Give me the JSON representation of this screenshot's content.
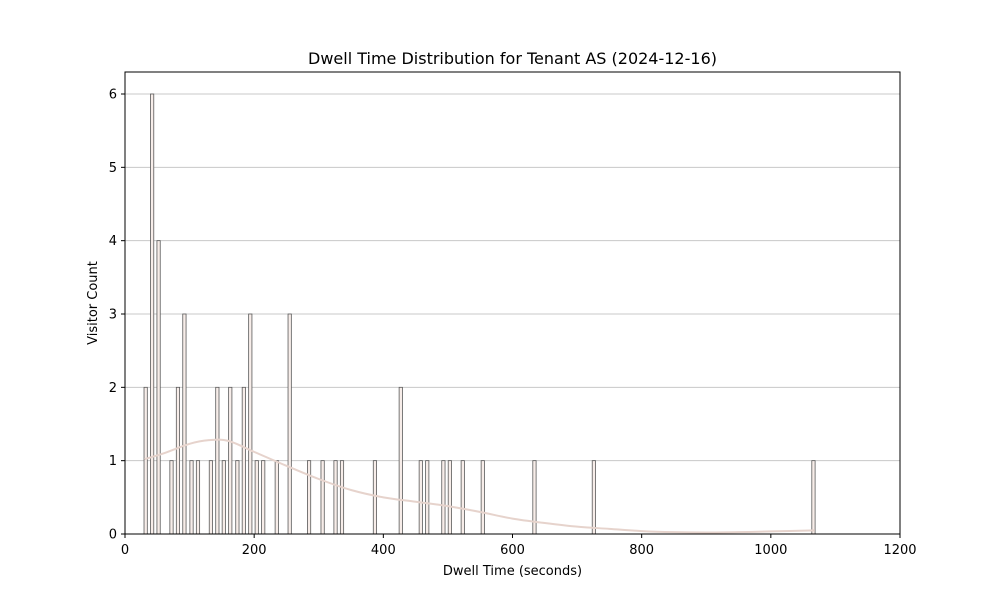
{
  "chart_data": {
    "type": "bar",
    "title": "Dwell Time Distribution for Tenant AS (2024-12-16)",
    "xlabel": "Dwell Time (seconds)",
    "ylabel": "Visitor Count",
    "xlim": [
      0,
      1200
    ],
    "ylim": [
      0,
      6.3
    ],
    "xticks": [
      0,
      200,
      400,
      600,
      800,
      1000,
      1200
    ],
    "yticks": [
      0,
      1,
      2,
      3,
      4,
      5,
      6
    ],
    "grid": {
      "axis": "y",
      "color": "#c8c8c8"
    },
    "bar_color": "#f7ede9",
    "bar_edge_color": "#5a5a5a",
    "kde_color": "#e6d3cc",
    "bin_width": 5.1,
    "bins": [
      {
        "x": 32,
        "count": 2
      },
      {
        "x": 42,
        "count": 6
      },
      {
        "x": 52,
        "count": 4
      },
      {
        "x": 72,
        "count": 1
      },
      {
        "x": 82,
        "count": 2
      },
      {
        "x": 92,
        "count": 3
      },
      {
        "x": 103,
        "count": 1
      },
      {
        "x": 113,
        "count": 1
      },
      {
        "x": 133,
        "count": 1
      },
      {
        "x": 143,
        "count": 2
      },
      {
        "x": 153,
        "count": 1
      },
      {
        "x": 163,
        "count": 2
      },
      {
        "x": 174,
        "count": 1
      },
      {
        "x": 184,
        "count": 2
      },
      {
        "x": 194,
        "count": 3
      },
      {
        "x": 204,
        "count": 1
      },
      {
        "x": 214,
        "count": 1
      },
      {
        "x": 235,
        "count": 1
      },
      {
        "x": 255,
        "count": 3
      },
      {
        "x": 285,
        "count": 1
      },
      {
        "x": 306,
        "count": 1
      },
      {
        "x": 326,
        "count": 1
      },
      {
        "x": 336,
        "count": 1
      },
      {
        "x": 387,
        "count": 1
      },
      {
        "x": 427,
        "count": 2
      },
      {
        "x": 458,
        "count": 1
      },
      {
        "x": 468,
        "count": 1
      },
      {
        "x": 493,
        "count": 1
      },
      {
        "x": 503,
        "count": 1
      },
      {
        "x": 523,
        "count": 1
      },
      {
        "x": 554,
        "count": 1
      },
      {
        "x": 634,
        "count": 1
      },
      {
        "x": 726,
        "count": 1
      },
      {
        "x": 1066,
        "count": 1
      }
    ],
    "kde": {
      "x": [
        30,
        60,
        100,
        130,
        160,
        200,
        250,
        300,
        350,
        400,
        450,
        500,
        550,
        600,
        650,
        700,
        750,
        800,
        850,
        900,
        950,
        1000,
        1068
      ],
      "y": [
        1.02,
        1.1,
        1.23,
        1.28,
        1.27,
        1.12,
        0.93,
        0.75,
        0.6,
        0.5,
        0.44,
        0.38,
        0.3,
        0.21,
        0.15,
        0.1,
        0.07,
        0.04,
        0.025,
        0.02,
        0.025,
        0.035,
        0.05
      ]
    }
  }
}
